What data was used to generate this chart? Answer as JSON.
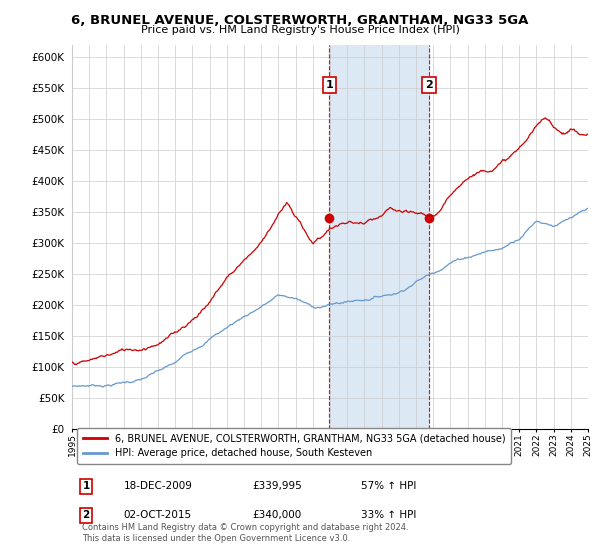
{
  "title": "6, BRUNEL AVENUE, COLSTERWORTH, GRANTHAM, NG33 5GA",
  "subtitle": "Price paid vs. HM Land Registry's House Price Index (HPI)",
  "ylabel_ticks": [
    "£0",
    "£50K",
    "£100K",
    "£150K",
    "£200K",
    "£250K",
    "£300K",
    "£350K",
    "£400K",
    "£450K",
    "£500K",
    "£550K",
    "£600K"
  ],
  "ytick_values": [
    0,
    50000,
    100000,
    150000,
    200000,
    250000,
    300000,
    350000,
    400000,
    450000,
    500000,
    550000,
    600000
  ],
  "xlim_years": [
    1995,
    2025
  ],
  "ylim": [
    0,
    620000
  ],
  "hpi_color": "#6699cc",
  "price_color": "#cc0000",
  "purchase1_year": 2009.96,
  "purchase1_price": 339995,
  "purchase1_label": "1",
  "purchase2_year": 2015.75,
  "purchase2_price": 340000,
  "purchase2_label": "2",
  "annotation1_date": "18-DEC-2009",
  "annotation1_price": "£339,995",
  "annotation1_hpi": "57% ↑ HPI",
  "annotation2_date": "02-OCT-2015",
  "annotation2_price": "£340,000",
  "annotation2_hpi": "33% ↑ HPI",
  "legend_line1": "6, BRUNEL AVENUE, COLSTERWORTH, GRANTHAM, NG33 5GA (detached house)",
  "legend_line2": "HPI: Average price, detached house, South Kesteven",
  "footnote": "Contains HM Land Registry data © Crown copyright and database right 2024.\nThis data is licensed under the Open Government Licence v3.0.",
  "background_color": "#ffffff",
  "shaded_region_color": "#dce9f5",
  "shaded_x_start": 2009.96,
  "shaded_x_end": 2015.75
}
